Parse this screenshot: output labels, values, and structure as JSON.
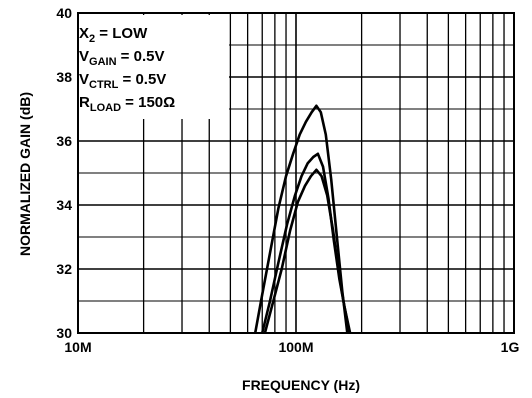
{
  "chart_data": {
    "type": "line",
    "title": "",
    "xlabel": "FREQUENCY (Hz)",
    "ylabel": "NORMALIZED GAIN (dB)",
    "xscale": "log",
    "xlim": [
      10000000,
      1000000000
    ],
    "ylim": [
      30,
      40
    ],
    "x_ticks": [
      {
        "value": 10000000,
        "label": "10M"
      },
      {
        "value": 100000000,
        "label": "100M"
      },
      {
        "value": 1000000000,
        "label": "1G"
      }
    ],
    "y_ticks": [
      {
        "value": 30,
        "label": "30"
      },
      {
        "value": 32,
        "label": "32"
      },
      {
        "value": 34,
        "label": "34"
      },
      {
        "value": 36,
        "label": "36"
      },
      {
        "value": 38,
        "label": "38"
      },
      {
        "value": 40,
        "label": "40"
      }
    ],
    "grid": true,
    "conditions": [
      {
        "main": "X",
        "sub": "2",
        "rest": " = LOW"
      },
      {
        "main": "V",
        "sub": "GAIN",
        "rest": " = 0.5V"
      },
      {
        "main": "V",
        "sub": "CTRL",
        "rest": " = 0.5V"
      },
      {
        "main": "R",
        "sub": "LOAD",
        "rest": " = 150Ω"
      }
    ],
    "series": [
      {
        "x": [
          65000000,
          70000000,
          76000000,
          83000000,
          90000000,
          97000000,
          104000000,
          111000000,
          118000000,
          124000000,
          130000000,
          137000000,
          145000000,
          154000000,
          163000000,
          172000000
        ],
        "values": [
          30.0,
          31.2,
          32.5,
          33.9,
          34.9,
          35.6,
          36.2,
          36.6,
          36.9,
          37.1,
          36.9,
          36.2,
          34.8,
          33.0,
          31.3,
          30.0
        ]
      },
      {
        "x": [
          70000000,
          76000000,
          83000000,
          91000000,
          99000000,
          106000000,
          113000000,
          120000000,
          126000000,
          133000000,
          141000000,
          149000000,
          158000000,
          167000000,
          177000000
        ],
        "values": [
          30.0,
          31.0,
          32.2,
          33.4,
          34.3,
          34.9,
          35.3,
          35.5,
          35.6,
          35.2,
          34.2,
          32.9,
          31.7,
          30.8,
          30.0
        ]
      },
      {
        "x": [
          72000000,
          78000000,
          86000000,
          94000000,
          102000000,
          110000000,
          117000000,
          124000000,
          131000000,
          139000000,
          148000000,
          157000000,
          166000000,
          176000000
        ],
        "values": [
          30.0,
          30.9,
          32.0,
          33.2,
          34.1,
          34.6,
          34.9,
          35.1,
          34.9,
          34.3,
          33.2,
          31.9,
          30.9,
          30.0
        ]
      }
    ]
  }
}
